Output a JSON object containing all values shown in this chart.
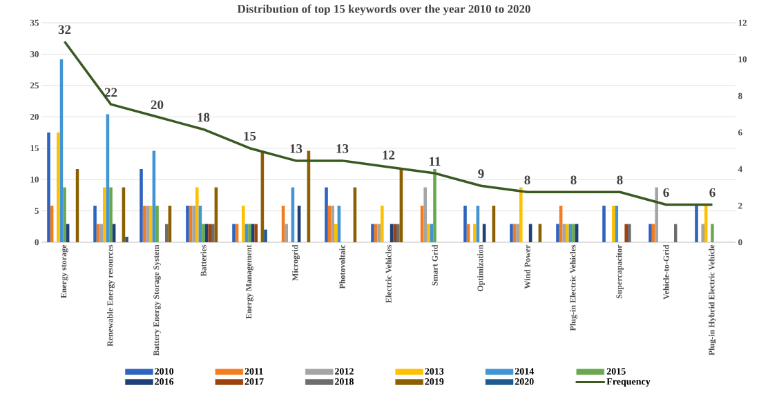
{
  "chart_data": {
    "type": "bar",
    "title": "Distribution of top 15 keywords over the year 2010 to 2020",
    "categories": [
      "Energy storage",
      "Renewable Energy resources",
      "Battery Energy Storage System",
      "Batteries",
      "Energy Management",
      "Microgrid",
      "Photovoltaic",
      "Electric Vehicles",
      "Smart Grid",
      "Optimization",
      "Wind Power",
      "Plug-in Electric Vehicles",
      "Supercapacitor",
      "Vehicle-to-Grid",
      "Plug-in Hybrid Electric Vehicle"
    ],
    "series": [
      {
        "name": "2010",
        "color": "#2e63c0",
        "axis": "y2",
        "values": [
          6,
          2,
          4,
          2,
          1,
          null,
          3,
          1,
          null,
          2,
          1,
          1,
          2,
          1,
          2
        ]
      },
      {
        "name": "2011",
        "color": "#f47c20",
        "axis": "y2",
        "values": [
          2,
          1,
          2,
          2,
          1,
          2,
          2,
          1,
          2,
          1,
          1,
          2,
          null,
          1,
          null
        ]
      },
      {
        "name": "2012",
        "color": "#a5a5a5",
        "axis": "y2",
        "values": [
          null,
          1,
          2,
          2,
          null,
          1,
          2,
          1,
          3,
          null,
          1,
          1,
          null,
          3,
          1
        ]
      },
      {
        "name": "2013",
        "color": "#ffc000",
        "axis": "y2",
        "values": [
          6,
          3,
          2,
          3,
          2,
          null,
          1,
          2,
          1,
          1,
          3,
          1,
          2,
          null,
          2
        ]
      },
      {
        "name": "2014",
        "color": "#4195d5",
        "axis": "y2",
        "values": [
          10,
          7,
          5,
          2,
          1,
          3,
          2,
          null,
          1,
          2,
          null,
          1,
          2,
          null,
          null
        ]
      },
      {
        "name": "2015",
        "color": "#6aa84f",
        "axis": "y2",
        "values": [
          3,
          3,
          2,
          1,
          1,
          null,
          null,
          null,
          4,
          null,
          null,
          1,
          null,
          null,
          1
        ]
      },
      {
        "name": "2016",
        "color": "#1f3f78",
        "axis": "y2",
        "values": [
          1,
          1,
          null,
          1,
          1,
          2,
          null,
          1,
          null,
          1,
          1,
          1,
          null,
          null,
          null
        ]
      },
      {
        "name": "2017",
        "color": "#9c420e",
        "axis": "y2",
        "values": [
          null,
          null,
          null,
          1,
          1,
          null,
          null,
          1,
          null,
          null,
          null,
          null,
          1,
          null,
          null
        ]
      },
      {
        "name": "2018",
        "color": "#6d6d6d",
        "axis": "y2",
        "values": [
          null,
          null,
          1,
          1,
          null,
          null,
          null,
          1,
          null,
          null,
          null,
          null,
          1,
          1,
          null
        ]
      },
      {
        "name": "2019",
        "color": "#8c6000",
        "axis": "y2",
        "values": [
          4,
          3,
          2,
          3,
          5,
          5,
          3,
          4,
          null,
          2,
          1,
          null,
          null,
          null,
          null
        ]
      },
      {
        "name": "2020",
        "color": "#1f5a93",
        "axis": "y2",
        "values": [
          null,
          0.3,
          null,
          null,
          0.7,
          null,
          null,
          null,
          null,
          null,
          null,
          null,
          null,
          null,
          null
        ]
      },
      {
        "name": "Frequency",
        "type": "line",
        "color": "#3a5a21",
        "axis": "y",
        "values": [
          32,
          22,
          20,
          18,
          15,
          13,
          13,
          12,
          11,
          9,
          8,
          8,
          8,
          6,
          6
        ],
        "value_labels": [
          "32",
          "22",
          "20",
          "18",
          "15",
          "13",
          "13",
          "12",
          "11",
          "9",
          "8",
          "8",
          "8",
          "6",
          "6"
        ]
      }
    ],
    "ylim": [
      0,
      35
    ],
    "yticks": [
      0,
      5,
      10,
      15,
      20,
      25,
      30,
      35
    ],
    "y2lim": [
      0,
      12
    ],
    "y2ticks": [
      0,
      2,
      4,
      6,
      8,
      10,
      12
    ],
    "grid": "y",
    "legend": "bottom",
    "marker": "none",
    "line_style": "solid"
  }
}
